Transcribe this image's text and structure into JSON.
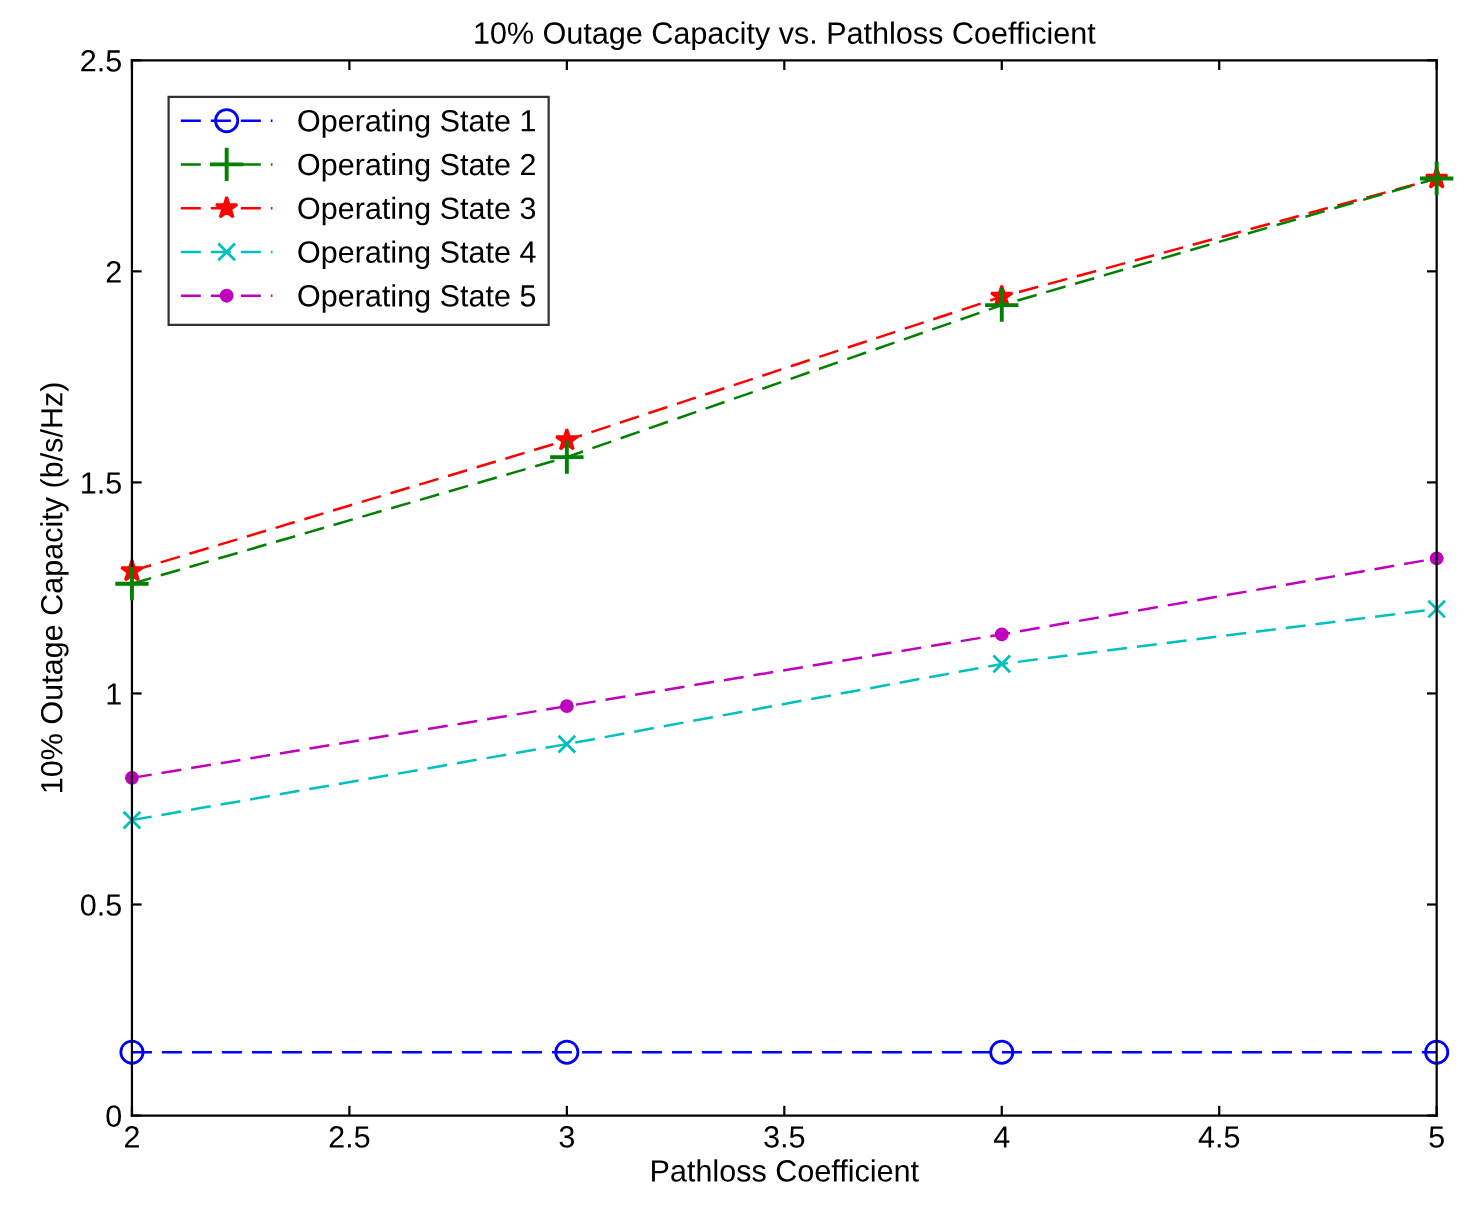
{
  "chart_data": {
    "type": "line",
    "title": "10% Outage Capacity vs. Pathloss Coefficient",
    "xlabel": "Pathloss Coefficient",
    "ylabel": "10% Outage Capacity (b/s/Hz)",
    "x": [
      2,
      3,
      4,
      5
    ],
    "series": [
      {
        "name": "Operating State 1",
        "color": "#0000ff",
        "marker": "circle",
        "values": [
          0.15,
          0.15,
          0.15,
          0.15
        ]
      },
      {
        "name": "Operating State 2",
        "color": "#008000",
        "marker": "plus",
        "values": [
          1.26,
          1.56,
          1.92,
          2.22
        ]
      },
      {
        "name": "Operating State 3",
        "color": "#ff0000",
        "marker": "star",
        "values": [
          1.29,
          1.6,
          1.94,
          2.22
        ]
      },
      {
        "name": "Operating State 4",
        "color": "#00bfbf",
        "marker": "x",
        "values": [
          0.7,
          0.88,
          1.07,
          1.2
        ]
      },
      {
        "name": "Operating State 5",
        "color": "#bf00bf",
        "marker": "point",
        "values": [
          0.8,
          0.97,
          1.14,
          1.32
        ]
      }
    ],
    "xlim": [
      2,
      5
    ],
    "xticks": [
      2,
      2.5,
      3,
      3.5,
      4,
      4.5,
      5
    ],
    "ylim": [
      0,
      2.5
    ],
    "yticks": [
      0,
      0.5,
      1,
      1.5,
      2,
      2.5
    ],
    "line_style": "dashed",
    "grid": false,
    "legend": "top left"
  }
}
